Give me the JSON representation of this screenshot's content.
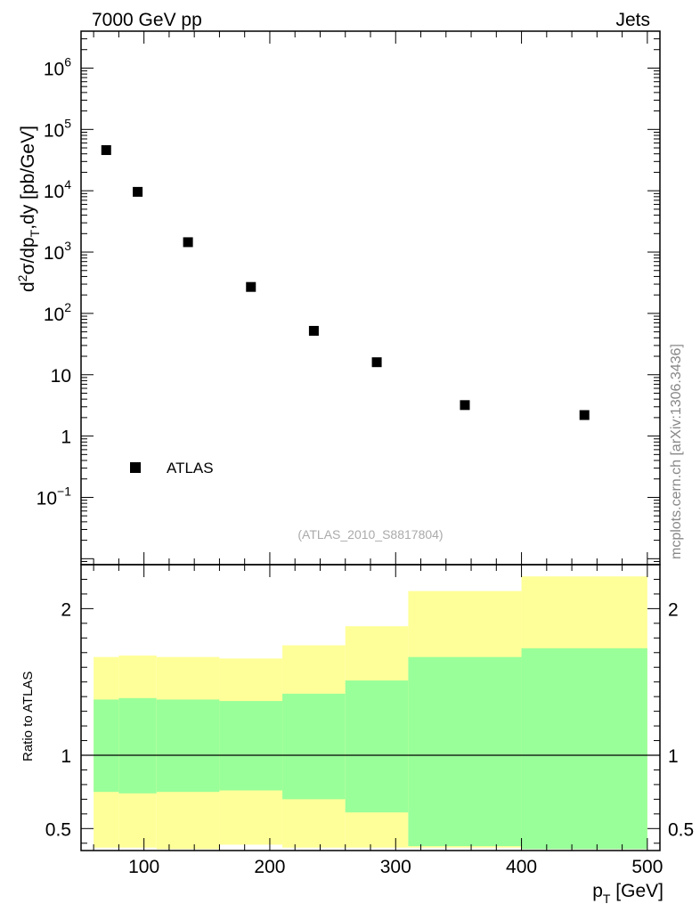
{
  "header": {
    "left": "7000 GeV pp",
    "right": "Jets"
  },
  "side_label": "mcplots.cern.ch [arXiv:1306.3436]",
  "analysis_label": "(ATLAS_2010_S8817804)",
  "legend": {
    "entries": [
      {
        "label": "ATLAS",
        "marker": "square",
        "color": "#000000"
      }
    ]
  },
  "colors": {
    "band_outer": "#ffff99",
    "band_inner": "#99ff99",
    "marker": "#000000",
    "ratio_line": "#000000"
  },
  "chart_data": [
    {
      "type": "scatter",
      "scale": {
        "y": "log"
      },
      "xlim": [
        50,
        510
      ],
      "ylim": [
        0.008,
        4000000
      ],
      "ylabel": "d2σ/dpT,dy [pb/GeV]",
      "yticks": [
        {
          "value": 1000000,
          "label": "10",
          "sup": "6"
        },
        {
          "value": 100000,
          "label": "10",
          "sup": "5"
        },
        {
          "value": 10000,
          "label": "10",
          "sup": "4"
        },
        {
          "value": 1000,
          "label": "10",
          "sup": "3"
        },
        {
          "value": 100,
          "label": "10",
          "sup": "2"
        },
        {
          "value": 10,
          "label": "10",
          "sup": ""
        },
        {
          "value": 1,
          "label": "1",
          "sup": ""
        },
        {
          "value": 0.1,
          "label": "10",
          "sup": "−1"
        }
      ],
      "series": [
        {
          "name": "ATLAS",
          "points": [
            {
              "x": 70,
              "y": 46000
            },
            {
              "x": 95,
              "y": 9600
            },
            {
              "x": 135,
              "y": 1450
            },
            {
              "x": 185,
              "y": 270
            },
            {
              "x": 235,
              "y": 52
            },
            {
              "x": 285,
              "y": 16
            },
            {
              "x": 355,
              "y": 3.2
            },
            {
              "x": 450,
              "y": 2.2
            }
          ]
        }
      ]
    },
    {
      "type": "area",
      "xlim": [
        50,
        510
      ],
      "ylim": [
        0.35,
        2.3
      ],
      "xlabel": "pT [GeV]",
      "ylabel": "Ratio to ATLAS",
      "xticks": [
        100,
        200,
        300,
        400,
        500
      ],
      "yticks": [
        {
          "value": 0.5,
          "label": "0.5"
        },
        {
          "value": 1,
          "label": "1"
        },
        {
          "value": 2,
          "label": "2"
        }
      ],
      "reference": 1,
      "bins": [
        {
          "x_low": 60,
          "x_high": 80,
          "outer_low": 0.37,
          "outer_high": 1.67,
          "inner_low": 0.75,
          "inner_high": 1.38
        },
        {
          "x_low": 80,
          "x_high": 110,
          "outer_low": 0.37,
          "outer_high": 1.68,
          "inner_low": 0.74,
          "inner_high": 1.39
        },
        {
          "x_low": 110,
          "x_high": 160,
          "outer_low": 0.36,
          "outer_high": 1.67,
          "inner_low": 0.75,
          "inner_high": 1.38
        },
        {
          "x_low": 160,
          "x_high": 210,
          "outer_low": 0.39,
          "outer_high": 1.66,
          "inner_low": 0.76,
          "inner_high": 1.37
        },
        {
          "x_low": 210,
          "x_high": 260,
          "outer_low": 0.37,
          "outer_high": 1.75,
          "inner_low": 0.7,
          "inner_high": 1.42
        },
        {
          "x_low": 260,
          "x_high": 310,
          "outer_low": 0.37,
          "outer_high": 1.88,
          "inner_low": 0.61,
          "inner_high": 1.51
        },
        {
          "x_low": 310,
          "x_high": 400,
          "outer_low": 0.37,
          "outer_high": 2.12,
          "inner_low": 0.38,
          "inner_high": 1.67
        },
        {
          "x_low": 400,
          "x_high": 500,
          "outer_low": 0.36,
          "outer_high": 2.22,
          "inner_low": 0.36,
          "inner_high": 1.73
        }
      ]
    }
  ]
}
